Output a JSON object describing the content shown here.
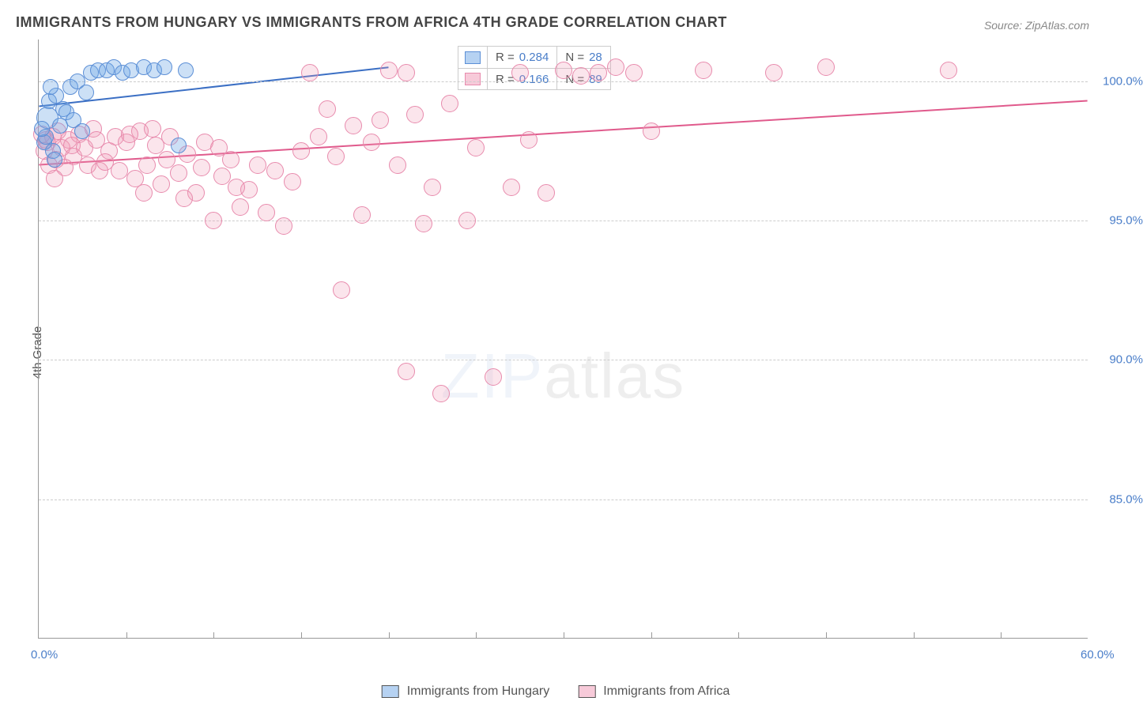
{
  "title": "IMMIGRANTS FROM HUNGARY VS IMMIGRANTS FROM AFRICA 4TH GRADE CORRELATION CHART",
  "source": "Source: ZipAtlas.com",
  "ylabel": "4th Grade",
  "watermark_a": "ZIP",
  "watermark_b": "atlas",
  "chart": {
    "type": "scatter",
    "xlim": [
      0,
      60
    ],
    "ylim": [
      80,
      101.5
    ],
    "yticks": [
      {
        "v": 85,
        "label": "85.0%"
      },
      {
        "v": 90,
        "label": "90.0%"
      },
      {
        "v": 95,
        "label": "95.0%"
      },
      {
        "v": 100,
        "label": "100.0%"
      }
    ],
    "xticks": [
      {
        "v": 0,
        "label": "0.0%"
      },
      {
        "v": 60,
        "label": "60.0%"
      }
    ],
    "xminor": [
      5,
      10,
      15,
      20,
      25,
      30,
      35,
      40,
      45,
      50,
      55
    ],
    "background_color": "#ffffff",
    "grid_color": "#cccccc",
    "series": [
      {
        "name": "Immigrants from Hungary",
        "color_fill": "rgba(110,165,230,.35)",
        "color_stroke": "#5c8fd6",
        "marker_r": 10,
        "R": "0.284",
        "N": "28",
        "trend": {
          "x1": 0,
          "y1": 99.1,
          "x2": 20,
          "y2": 100.5,
          "stroke": "#3b6fc4",
          "width": 2
        },
        "points": [
          {
            "x": 0.5,
            "y": 98.7,
            "r": 14
          },
          {
            "x": 0.3,
            "y": 97.8,
            "r": 10
          },
          {
            "x": 0.6,
            "y": 99.3,
            "r": 10
          },
          {
            "x": 1.0,
            "y": 99.5,
            "r": 10
          },
          {
            "x": 1.4,
            "y": 99.0,
            "r": 10
          },
          {
            "x": 1.8,
            "y": 99.8,
            "r": 10
          },
          {
            "x": 2.2,
            "y": 100.0,
            "r": 10
          },
          {
            "x": 2.7,
            "y": 99.6,
            "r": 10
          },
          {
            "x": 3.0,
            "y": 100.3,
            "r": 10
          },
          {
            "x": 3.4,
            "y": 100.4,
            "r": 10
          },
          {
            "x": 3.9,
            "y": 100.4,
            "r": 10
          },
          {
            "x": 4.3,
            "y": 100.5,
            "r": 10
          },
          {
            "x": 4.8,
            "y": 100.3,
            "r": 10
          },
          {
            "x": 5.3,
            "y": 100.4,
            "r": 10
          },
          {
            "x": 6.0,
            "y": 100.5,
            "r": 10
          },
          {
            "x": 6.6,
            "y": 100.4,
            "r": 10
          },
          {
            "x": 7.2,
            "y": 100.5,
            "r": 10
          },
          {
            "x": 8.4,
            "y": 100.4,
            "r": 10
          },
          {
            "x": 1.2,
            "y": 98.4,
            "r": 10
          },
          {
            "x": 0.8,
            "y": 97.5,
            "r": 10
          },
          {
            "x": 1.6,
            "y": 98.9,
            "r": 10
          },
          {
            "x": 0.4,
            "y": 98.0,
            "r": 10
          },
          {
            "x": 2.0,
            "y": 98.6,
            "r": 10
          },
          {
            "x": 2.5,
            "y": 98.2,
            "r": 10
          },
          {
            "x": 0.9,
            "y": 97.2,
            "r": 10
          },
          {
            "x": 0.2,
            "y": 98.3,
            "r": 10
          },
          {
            "x": 8.0,
            "y": 97.7,
            "r": 10
          },
          {
            "x": 0.7,
            "y": 99.8,
            "r": 10
          }
        ]
      },
      {
        "name": "Immigrants from Africa",
        "color_fill": "rgba(240,150,180,.25)",
        "color_stroke": "#e88bad",
        "marker_r": 11,
        "R": "0.166",
        "N": "89",
        "trend": {
          "x1": 0,
          "y1": 97.0,
          "x2": 60,
          "y2": 99.3,
          "stroke": "#e05a8c",
          "width": 2
        },
        "points": [
          {
            "x": 0.5,
            "y": 97.8
          },
          {
            "x": 0.3,
            "y": 97.5
          },
          {
            "x": 0.8,
            "y": 98.0
          },
          {
            "x": 1.0,
            "y": 97.2
          },
          {
            "x": 1.3,
            "y": 97.6
          },
          {
            "x": 1.7,
            "y": 97.9
          },
          {
            "x": 2.0,
            "y": 97.3
          },
          {
            "x": 2.3,
            "y": 98.1
          },
          {
            "x": 2.8,
            "y": 97.0
          },
          {
            "x": 3.1,
            "y": 98.3
          },
          {
            "x": 3.5,
            "y": 96.8
          },
          {
            "x": 4.0,
            "y": 97.5
          },
          {
            "x": 4.4,
            "y": 98.0
          },
          {
            "x": 5.0,
            "y": 97.8
          },
          {
            "x": 5.5,
            "y": 96.5
          },
          {
            "x": 5.8,
            "y": 98.2
          },
          {
            "x": 6.2,
            "y": 97.0
          },
          {
            "x": 6.7,
            "y": 97.7
          },
          {
            "x": 7.0,
            "y": 96.3
          },
          {
            "x": 7.5,
            "y": 98.0
          },
          {
            "x": 8.0,
            "y": 96.7
          },
          {
            "x": 8.5,
            "y": 97.4
          },
          {
            "x": 9.0,
            "y": 96.0
          },
          {
            "x": 9.5,
            "y": 97.8
          },
          {
            "x": 10.0,
            "y": 95.0
          },
          {
            "x": 10.5,
            "y": 96.6
          },
          {
            "x": 11.0,
            "y": 97.2
          },
          {
            "x": 11.5,
            "y": 95.5
          },
          {
            "x": 12.0,
            "y": 96.1
          },
          {
            "x": 12.5,
            "y": 97.0
          },
          {
            "x": 13.0,
            "y": 95.3
          },
          {
            "x": 13.5,
            "y": 96.8
          },
          {
            "x": 14.0,
            "y": 94.8
          },
          {
            "x": 14.5,
            "y": 96.4
          },
          {
            "x": 15.0,
            "y": 97.5
          },
          {
            "x": 15.5,
            "y": 100.3
          },
          {
            "x": 16.0,
            "y": 98.0
          },
          {
            "x": 16.5,
            "y": 99.0
          },
          {
            "x": 17.0,
            "y": 97.3
          },
          {
            "x": 17.3,
            "y": 92.5
          },
          {
            "x": 18.0,
            "y": 98.4
          },
          {
            "x": 18.5,
            "y": 95.2
          },
          {
            "x": 19.0,
            "y": 97.8
          },
          {
            "x": 19.5,
            "y": 98.6
          },
          {
            "x": 20.0,
            "y": 100.4
          },
          {
            "x": 20.5,
            "y": 97.0
          },
          {
            "x": 21.0,
            "y": 100.3
          },
          {
            "x": 21.5,
            "y": 98.8
          },
          {
            "x": 22.0,
            "y": 94.9
          },
          {
            "x": 22.5,
            "y": 96.2
          },
          {
            "x": 21.0,
            "y": 89.6
          },
          {
            "x": 23.0,
            "y": 88.8
          },
          {
            "x": 23.5,
            "y": 99.2
          },
          {
            "x": 24.5,
            "y": 95.0
          },
          {
            "x": 25.0,
            "y": 97.6
          },
          {
            "x": 26.0,
            "y": 89.4
          },
          {
            "x": 27.0,
            "y": 96.2
          },
          {
            "x": 27.5,
            "y": 100.3
          },
          {
            "x": 28.0,
            "y": 97.9
          },
          {
            "x": 29.0,
            "y": 96.0
          },
          {
            "x": 30.0,
            "y": 100.4
          },
          {
            "x": 31.0,
            "y": 100.2
          },
          {
            "x": 32.0,
            "y": 100.3
          },
          {
            "x": 33.0,
            "y": 100.5
          },
          {
            "x": 34.0,
            "y": 100.3
          },
          {
            "x": 35.0,
            "y": 98.2
          },
          {
            "x": 38.0,
            "y": 100.4
          },
          {
            "x": 42.0,
            "y": 100.3
          },
          {
            "x": 45.0,
            "y": 100.5
          },
          {
            "x": 52.0,
            "y": 100.4
          },
          {
            "x": 0.6,
            "y": 97.0
          },
          {
            "x": 0.4,
            "y": 97.9
          },
          {
            "x": 1.1,
            "y": 98.2
          },
          {
            "x": 1.5,
            "y": 96.9
          },
          {
            "x": 1.9,
            "y": 97.7
          },
          {
            "x": 0.2,
            "y": 98.1
          },
          {
            "x": 0.9,
            "y": 96.5
          },
          {
            "x": 2.6,
            "y": 97.6
          },
          {
            "x": 3.3,
            "y": 97.9
          },
          {
            "x": 3.8,
            "y": 97.1
          },
          {
            "x": 4.6,
            "y": 96.8
          },
          {
            "x": 5.2,
            "y": 98.1
          },
          {
            "x": 6.0,
            "y": 96.0
          },
          {
            "x": 6.5,
            "y": 98.3
          },
          {
            "x": 7.3,
            "y": 97.2
          },
          {
            "x": 8.3,
            "y": 95.8
          },
          {
            "x": 9.3,
            "y": 96.9
          },
          {
            "x": 10.3,
            "y": 97.6
          },
          {
            "x": 11.3,
            "y": 96.2
          }
        ]
      }
    ]
  },
  "legend": {
    "r_label": "R =",
    "n_label": "N =",
    "bottom": [
      {
        "label": "Immigrants from Hungary"
      },
      {
        "label": "Immigrants from Africa"
      }
    ]
  }
}
